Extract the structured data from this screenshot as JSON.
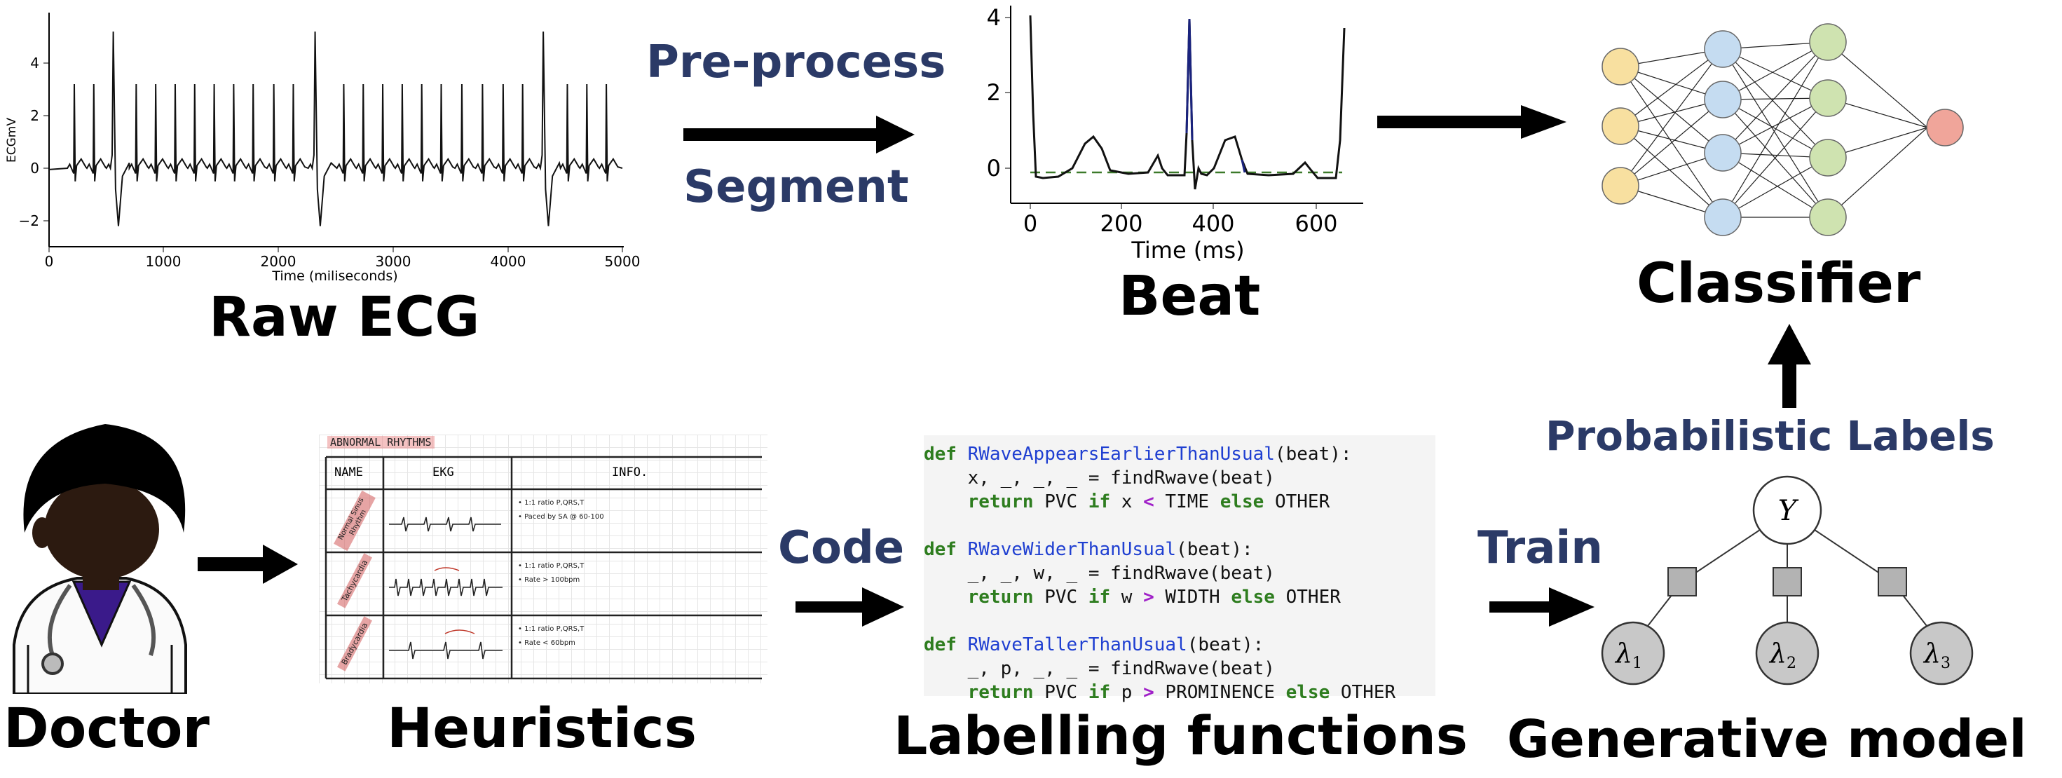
{
  "labels": {
    "raw_ecg": "Raw ECG",
    "beat": "Beat",
    "classifier": "Classifier",
    "doctor": "Doctor",
    "heuristics": "Heuristics",
    "labelling_functions": "Labelling functions",
    "generative_model": "Generative model",
    "preprocess": "Pre-process",
    "segment": "Segment",
    "code": "Code",
    "train": "Train",
    "probabilistic_labels": "Probabilistic Labels"
  },
  "raw_ecg_plot": {
    "ylabel": "ECGmV",
    "xlabel": "Time (miliseconds)",
    "xticks": [
      "0",
      "1000",
      "2000",
      "3000",
      "4000",
      "5000"
    ],
    "yticks": [
      "4",
      "2",
      "0",
      "−2"
    ]
  },
  "beat_plot": {
    "xlabel": "Time (ms)",
    "xticks": [
      "0",
      "200",
      "400",
      "600"
    ],
    "yticks": [
      "4",
      "2",
      "0"
    ]
  },
  "heuristics_table": {
    "title": "ABNORMAL RHYTHMS",
    "headers": [
      "NAME",
      "EKG",
      "INFO."
    ],
    "rows": [
      {
        "name": "Normal Sinus Rhythm",
        "info": [
          "• 1:1 ratio P,QRS,T",
          "• Paced by SA @ 60-100"
        ]
      },
      {
        "name": "Tachycardia",
        "info": [
          "• 1:1 ratio P,QRS,T",
          "• Rate > 100bpm"
        ]
      },
      {
        "name": "Bradycardia",
        "info": [
          "• 1:1 ratio P,QRS,T",
          "• Rate < 60bpm"
        ]
      }
    ]
  },
  "code": {
    "lines": [
      [
        [
          "kw",
          "def "
        ],
        [
          "fn",
          "RWaveAppearsEarlierThanUsual"
        ],
        [
          "t",
          "(beat):"
        ]
      ],
      [
        [
          "t",
          "    x, _, _, _ "
        ],
        [
          "t",
          "= findRwave(beat)"
        ]
      ],
      [
        [
          "t",
          "    "
        ],
        [
          "kw",
          "return"
        ],
        [
          "t",
          " PVC "
        ],
        [
          "kw",
          "if"
        ],
        [
          "t",
          " x "
        ],
        [
          "op",
          "<"
        ],
        [
          "t",
          " TIME "
        ],
        [
          "kw",
          "else"
        ],
        [
          "t",
          " OTHER"
        ]
      ],
      [],
      [
        [
          "kw",
          "def "
        ],
        [
          "fn",
          "RWaveWiderThanUsual"
        ],
        [
          "t",
          "(beat):"
        ]
      ],
      [
        [
          "t",
          "    _, _, w, _ "
        ],
        [
          "t",
          "= findRwave(beat)"
        ]
      ],
      [
        [
          "t",
          "    "
        ],
        [
          "kw",
          "return"
        ],
        [
          "t",
          " PVC "
        ],
        [
          "kw",
          "if"
        ],
        [
          "t",
          " w "
        ],
        [
          "op",
          ">"
        ],
        [
          "t",
          " WIDTH "
        ],
        [
          "kw",
          "else"
        ],
        [
          "t",
          " OTHER"
        ]
      ],
      [],
      [
        [
          "kw",
          "def "
        ],
        [
          "fn",
          "RWaveTallerThanUsual"
        ],
        [
          "t",
          "(beat):"
        ]
      ],
      [
        [
          "t",
          "    _, p, _, _ "
        ],
        [
          "t",
          "= findRwave(beat)"
        ]
      ],
      [
        [
          "t",
          "    "
        ],
        [
          "kw",
          "return"
        ],
        [
          "t",
          " PVC "
        ],
        [
          "kw",
          "if"
        ],
        [
          "t",
          " p "
        ],
        [
          "op",
          ">"
        ],
        [
          "t",
          " PROMINENCE "
        ],
        [
          "kw",
          "else"
        ],
        [
          "t",
          " OTHER"
        ]
      ]
    ]
  },
  "generative_model": {
    "root": "Y",
    "leaves": [
      "λ",
      "λ",
      "λ"
    ],
    "subscripts": [
      "1",
      "2",
      "3"
    ]
  },
  "colors": {
    "navy": "#2b3a67",
    "input_node": "#f8e0a0",
    "hidden1_node": "#c5dcf1",
    "hidden2_node": "#cfe3b0",
    "output_node": "#f0a59a",
    "factor": "#b3b3b3",
    "leaf": "#c8c8c8",
    "doctor_scrubs": "#3a1a8a",
    "doctor_skin": "#2c1a10"
  }
}
